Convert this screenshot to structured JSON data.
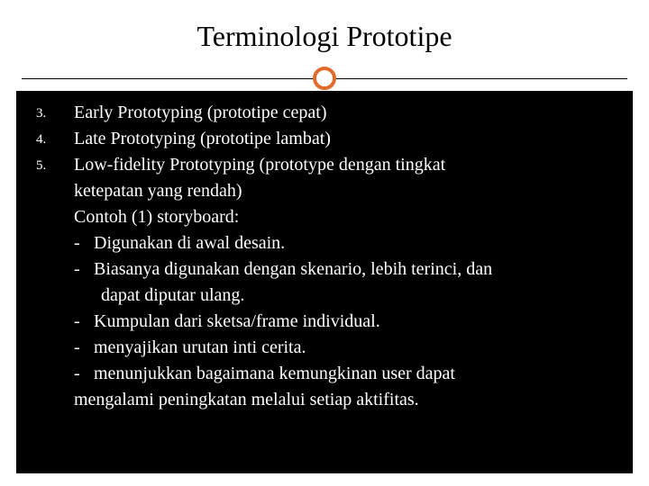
{
  "slide": {
    "title": "Terminologi Prototipe",
    "accent_color": "#e06c2b",
    "background_color": "#ffffff",
    "content_background": "#000000",
    "content_text_color": "#ffffff",
    "title_color": "#000000",
    "title_fontsize": 32,
    "body_fontsize": 20,
    "items": [
      {
        "number": "3.",
        "text": "Early Prototyping (prototipe cepat)"
      },
      {
        "number": "4.",
        "text": "Late Prototyping (prototipe lambat)"
      },
      {
        "number": "5.",
        "text": "Low-fidelity Prototyping (prototype dengan tingkat"
      }
    ],
    "item5_cont": "ketepatan yang rendah)",
    "subheading": "Contoh (1) storyboard:",
    "bullets": [
      {
        "dash": "-",
        "text": "Digunakan di awal desain."
      },
      {
        "dash": "-",
        "text": "Biasanya digunakan dengan skenario, lebih terinci, dan"
      }
    ],
    "bullet2_cont": " dapat diputar ulang.",
    "bullets2": [
      {
        "dash": "-",
        "text": "Kumpulan dari sketsa/frame individual."
      },
      {
        "dash": "-",
        "text": "menyajikan urutan inti cerita."
      },
      {
        "dash": "-",
        "text": "menunjukkan bagaimana kemungkinan user dapat"
      }
    ],
    "bullet5_cont": "mengalami peningkatan melalui setiap aktifitas."
  }
}
